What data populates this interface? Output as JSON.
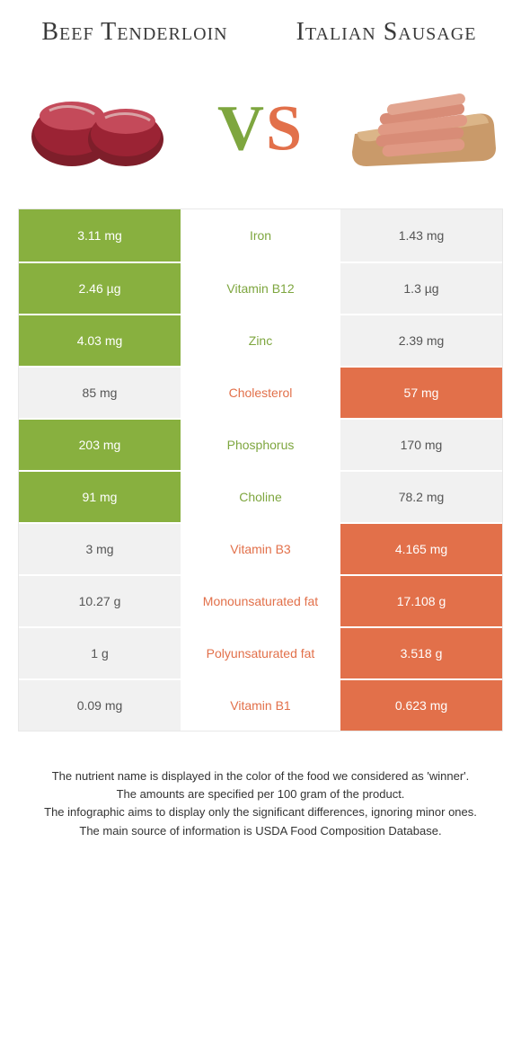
{
  "header": {
    "left_title": "Beef Tenderloin",
    "right_title": "Italian Sausage",
    "vs_v": "V",
    "vs_s": "S"
  },
  "colors": {
    "green": "#88b03f",
    "orange": "#e2704a",
    "grey": "#f1f1f1",
    "green_text": "#7ea63f",
    "orange_text": "#e2704a"
  },
  "table": {
    "rows": [
      {
        "name": "Iron",
        "left": "3.11 mg",
        "right": "1.43 mg",
        "winner": "left"
      },
      {
        "name": "Vitamin B12",
        "left": "2.46 µg",
        "right": "1.3 µg",
        "winner": "left"
      },
      {
        "name": "Zinc",
        "left": "4.03 mg",
        "right": "2.39 mg",
        "winner": "left"
      },
      {
        "name": "Cholesterol",
        "left": "85 mg",
        "right": "57 mg",
        "winner": "right"
      },
      {
        "name": "Phosphorus",
        "left": "203 mg",
        "right": "170 mg",
        "winner": "left"
      },
      {
        "name": "Choline",
        "left": "91 mg",
        "right": "78.2 mg",
        "winner": "left"
      },
      {
        "name": "Vitamin B3",
        "left": "3 mg",
        "right": "4.165 mg",
        "winner": "right"
      },
      {
        "name": "Monounsaturated fat",
        "left": "10.27 g",
        "right": "17.108 g",
        "winner": "right"
      },
      {
        "name": "Polyunsaturated fat",
        "left": "1 g",
        "right": "3.518 g",
        "winner": "right"
      },
      {
        "name": "Vitamin B1",
        "left": "0.09 mg",
        "right": "0.623 mg",
        "winner": "right"
      }
    ]
  },
  "footnotes": [
    "The nutrient name is displayed in the color of the food we considered as 'winner'.",
    "The amounts are specified per 100 gram of the product.",
    "The infographic aims to display only the significant differences, ignoring minor ones.",
    "The main source of information is USDA Food Composition Database."
  ]
}
